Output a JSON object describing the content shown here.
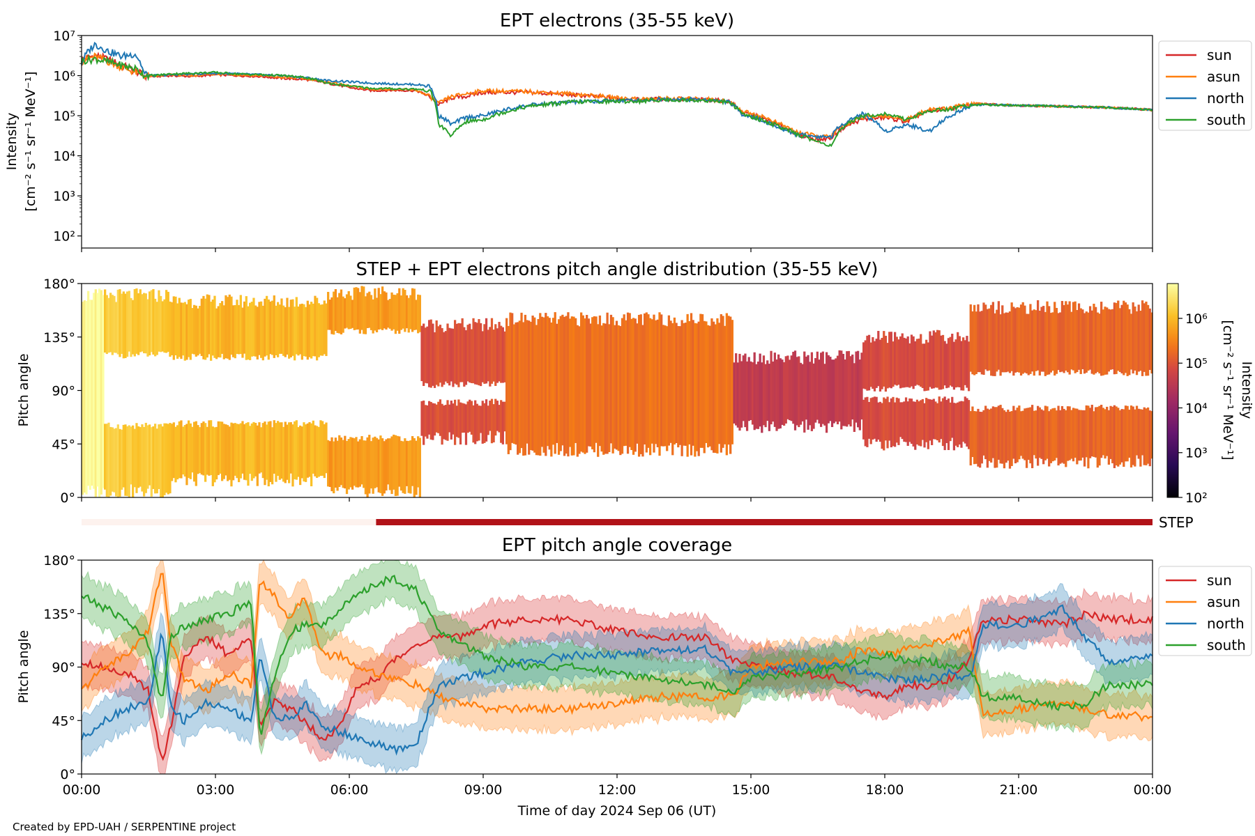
{
  "chart_data": [
    {
      "type": "line",
      "title": "EPT electrons (35-55 keV)",
      "ylabel_lines": [
        "Intensity",
        "[cm⁻² s⁻¹ sr⁻¹ MeV⁻¹]"
      ],
      "yscale": "log",
      "ylim": [
        50,
        10000000
      ],
      "ytick_labels": [
        "10²",
        "10³",
        "10⁴",
        "10⁵",
        "10⁶",
        "10⁷"
      ],
      "ytick_values": [
        100,
        1000,
        10000,
        100000,
        1000000,
        10000000
      ],
      "xlim_hours": [
        0,
        24
      ],
      "legend_position": "outside-right",
      "series": [
        {
          "name": "sun",
          "color": "#d62728",
          "x": [
            0,
            0.3,
            0.6,
            0.9,
            1.2,
            1.4,
            1.6,
            2,
            2.5,
            3,
            3.5,
            4,
            4.5,
            5,
            5.5,
            6,
            6.5,
            7,
            7.5,
            7.8,
            8,
            8.3,
            8.6,
            9,
            10,
            11,
            12,
            12.5,
            13,
            14,
            14.5,
            14.8,
            15.2,
            15.6,
            16,
            16.5,
            16.8,
            17,
            17.5,
            18,
            18.5,
            19,
            19.5,
            20,
            21,
            22,
            23,
            24
          ],
          "y": [
            2500000,
            3200000,
            2500000,
            1800000,
            1300000,
            1000000,
            950000,
            1000000,
            950000,
            1050000,
            1000000,
            950000,
            850000,
            800000,
            650000,
            500000,
            420000,
            430000,
            420000,
            300000,
            180000,
            280000,
            300000,
            380000,
            380000,
            330000,
            270000,
            250000,
            260000,
            250000,
            230000,
            120000,
            90000,
            60000,
            35000,
            25000,
            28000,
            45000,
            80000,
            90000,
            70000,
            130000,
            150000,
            200000,
            180000,
            170000,
            160000,
            140000
          ]
        },
        {
          "name": "asun",
          "color": "#ff7f0e",
          "x": [
            0,
            0.3,
            0.6,
            0.9,
            1.2,
            1.4,
            1.6,
            2,
            2.5,
            3,
            3.5,
            4,
            4.5,
            5,
            5.5,
            6,
            6.5,
            7,
            7.5,
            7.8,
            8,
            8.3,
            8.6,
            9,
            10,
            11,
            12,
            12.5,
            13,
            14,
            14.5,
            14.8,
            15.2,
            15.6,
            16,
            16.5,
            16.8,
            17,
            17.5,
            18,
            18.5,
            19,
            19.5,
            20,
            21,
            22,
            23,
            24
          ],
          "y": [
            2200000,
            3000000,
            2200000,
            1600000,
            1200000,
            1000000,
            950000,
            1050000,
            1000000,
            1100000,
            1050000,
            1000000,
            900000,
            850000,
            700000,
            550000,
            450000,
            460000,
            430000,
            300000,
            200000,
            300000,
            350000,
            420000,
            400000,
            350000,
            280000,
            260000,
            270000,
            260000,
            230000,
            130000,
            100000,
            65000,
            40000,
            30000,
            30000,
            50000,
            90000,
            100000,
            80000,
            140000,
            160000,
            200000,
            180000,
            170000,
            160000,
            140000
          ]
        },
        {
          "name": "north",
          "color": "#1f77b4",
          "x": [
            0,
            0.3,
            0.6,
            0.9,
            1.2,
            1.4,
            1.6,
            2,
            2.5,
            3,
            3.5,
            4,
            4.5,
            5,
            5.5,
            6,
            6.5,
            7,
            7.5,
            7.8,
            8,
            8.3,
            8.6,
            9,
            10,
            11,
            12,
            12.5,
            13,
            14,
            14.5,
            14.8,
            15.2,
            15.6,
            16,
            16.5,
            16.8,
            17,
            17.5,
            18,
            18.5,
            19,
            19.5,
            20,
            21,
            22,
            23,
            24
          ],
          "y": [
            2000000,
            6000000,
            4000000,
            3000000,
            3500000,
            1100000,
            1000000,
            1050000,
            1100000,
            1150000,
            1100000,
            1050000,
            1000000,
            900000,
            750000,
            700000,
            650000,
            620000,
            600000,
            550000,
            100000,
            60000,
            90000,
            100000,
            180000,
            220000,
            240000,
            240000,
            260000,
            250000,
            220000,
            110000,
            80000,
            50000,
            35000,
            30000,
            30000,
            55000,
            110000,
            40000,
            60000,
            40000,
            100000,
            190000,
            180000,
            170000,
            160000,
            140000
          ]
        },
        {
          "name": "south",
          "color": "#2ca02c",
          "x": [
            0,
            0.3,
            0.6,
            0.9,
            1.2,
            1.4,
            1.6,
            2,
            2.5,
            3,
            3.5,
            4,
            4.5,
            5,
            5.5,
            6,
            6.5,
            7,
            7.5,
            7.8,
            8,
            8.3,
            8.6,
            9,
            10,
            11,
            12,
            12.5,
            13,
            14,
            14.5,
            14.8,
            15.2,
            15.6,
            16,
            16.5,
            16.8,
            17,
            17.5,
            18,
            18.5,
            19,
            19.5,
            20,
            21,
            22,
            23,
            24
          ],
          "y": [
            2300000,
            2600000,
            2200000,
            1800000,
            1500000,
            1050000,
            1000000,
            1100000,
            1150000,
            1200000,
            1100000,
            1050000,
            1000000,
            900000,
            650000,
            550000,
            480000,
            470000,
            460000,
            420000,
            60000,
            30000,
            70000,
            80000,
            170000,
            220000,
            230000,
            230000,
            250000,
            240000,
            220000,
            110000,
            80000,
            55000,
            35000,
            22000,
            18000,
            40000,
            100000,
            110000,
            80000,
            130000,
            150000,
            190000,
            180000,
            170000,
            160000,
            140000
          ]
        }
      ]
    },
    {
      "type": "heatmap",
      "title": "STEP + EPT electrons pitch angle distribution (35-55 keV)",
      "ylabel": "Pitch angle",
      "ylim": [
        0,
        180
      ],
      "ytick_labels": [
        "0°",
        "45°",
        "90°",
        "135°",
        "180°"
      ],
      "colorbar": {
        "label_lines": [
          "Intensity",
          "[cm⁻² s⁻¹ sr⁻¹ MeV⁻¹]"
        ],
        "scale": "log",
        "range": [
          100,
          6000000
        ],
        "tick_labels": [
          "10²",
          "10³",
          "10⁴",
          "10⁵",
          "10⁶"
        ],
        "tick_values": [
          100,
          1000,
          10000,
          100000,
          1000000
        ],
        "colormap": "inferno"
      },
      "segments": [
        {
          "x0": 0,
          "x1": 0.5,
          "lo": 5,
          "hi": 170,
          "gap_lo": 0,
          "gap_hi": 0,
          "intensity": 5000000
        },
        {
          "x0": 0.5,
          "x1": 2.0,
          "lo": 5,
          "hi": 170,
          "gap_lo": 60,
          "gap_hi": 120,
          "intensity": 1500000
        },
        {
          "x0": 2.0,
          "x1": 5.5,
          "lo": 15,
          "hi": 165,
          "gap_lo": 62,
          "gap_hi": 118,
          "intensity": 900000
        },
        {
          "x0": 5.5,
          "x1": 7.6,
          "lo": 5,
          "hi": 172,
          "gap_lo": 50,
          "gap_hi": 140,
          "intensity": 500000
        },
        {
          "x0": 7.6,
          "x1": 9.5,
          "lo": 50,
          "hi": 145,
          "gap_lo": 80,
          "gap_hi": 95,
          "intensity": 90000
        },
        {
          "x0": 9.5,
          "x1": 14.6,
          "lo": 40,
          "hi": 150,
          "gap_lo": 0,
          "gap_hi": 0,
          "intensity": 200000
        },
        {
          "x0": 14.6,
          "x1": 17.5,
          "lo": 60,
          "hi": 118,
          "gap_lo": 0,
          "gap_hi": 0,
          "intensity": 40000
        },
        {
          "x0": 17.5,
          "x1": 19.9,
          "lo": 45,
          "hi": 135,
          "gap_lo": 82,
          "gap_hi": 92,
          "intensity": 80000
        },
        {
          "x0": 19.9,
          "x1": 24,
          "lo": 30,
          "hi": 160,
          "gap_lo": 75,
          "gap_hi": 105,
          "intensity": 150000
        }
      ]
    },
    {
      "type": "bar",
      "label": "STEP",
      "segments": [
        {
          "x0": 0,
          "x1": 6.6,
          "color": "#fdf2ee"
        },
        {
          "x0": 6.6,
          "x1": 24,
          "color": "#b11218"
        }
      ]
    },
    {
      "type": "area",
      "title": "EPT pitch angle coverage",
      "ylabel": "Pitch angle",
      "xlabel": "Time of day 2024 Sep 06 (UT)",
      "ylim": [
        0,
        180
      ],
      "ytick_labels": [
        "0°",
        "45°",
        "90°",
        "135°",
        "180°"
      ],
      "xtick_labels": [
        "00:00",
        "03:00",
        "06:00",
        "09:00",
        "12:00",
        "15:00",
        "18:00",
        "21:00",
        "00:00"
      ],
      "xlim_hours": [
        0,
        24
      ],
      "band_halfwidth_deg": 18,
      "legend_position": "outside-right",
      "series": [
        {
          "name": "sun",
          "color": "#d62728",
          "x": [
            0,
            0.5,
            1,
            1.5,
            1.8,
            2,
            2.3,
            2.8,
            3.3,
            3.8,
            4,
            4.3,
            4.7,
            5,
            5.4,
            5.8,
            6.2,
            6.6,
            7,
            7.5,
            8,
            8.5,
            9,
            10,
            11,
            12,
            13,
            14,
            14.6,
            15,
            16,
            17,
            17.5,
            18,
            18.5,
            19,
            19.5,
            19.9,
            20.2,
            21,
            22,
            22.5,
            23,
            24
          ],
          "y": [
            95,
            90,
            85,
            70,
            10,
            40,
            100,
            115,
            100,
            115,
            40,
            60,
            55,
            45,
            30,
            40,
            75,
            80,
            95,
            110,
            115,
            115,
            125,
            130,
            130,
            120,
            115,
            115,
            95,
            92,
            85,
            80,
            70,
            65,
            75,
            75,
            80,
            95,
            130,
            130,
            125,
            135,
            130,
            130
          ]
        },
        {
          "name": "asun",
          "color": "#ff7f0e",
          "x": [
            0,
            0.5,
            1,
            1.5,
            1.8,
            2,
            2.3,
            2.8,
            3.3,
            3.8,
            4,
            4.3,
            4.7,
            5,
            5.4,
            5.8,
            6.2,
            6.6,
            7,
            7.5,
            8,
            8.5,
            9,
            10,
            11,
            12,
            13,
            14,
            14.6,
            15,
            16,
            17,
            17.5,
            18,
            18.5,
            19,
            19.5,
            19.9,
            20.2,
            21,
            22,
            22.5,
            23,
            24
          ],
          "y": [
            70,
            90,
            100,
            120,
            175,
            110,
            80,
            70,
            85,
            75,
            165,
            150,
            130,
            150,
            100,
            100,
            90,
            85,
            80,
            75,
            65,
            60,
            55,
            55,
            55,
            60,
            65,
            65,
            65,
            90,
            95,
            95,
            105,
            100,
            105,
            110,
            115,
            120,
            50,
            55,
            60,
            55,
            50,
            48
          ]
        },
        {
          "name": "north",
          "color": "#1f77b4",
          "x": [
            0,
            0.5,
            1,
            1.5,
            1.8,
            2,
            2.3,
            2.8,
            3.3,
            3.8,
            4,
            4.3,
            4.7,
            5,
            5.4,
            5.8,
            6.2,
            6.6,
            7,
            7.5,
            8,
            8.5,
            9,
            10,
            11,
            12,
            13,
            14,
            14.6,
            15,
            16,
            17,
            17.5,
            18,
            18.5,
            19,
            19.5,
            19.9,
            20.2,
            21,
            22,
            22.5,
            23,
            24
          ],
          "y": [
            30,
            45,
            55,
            60,
            120,
            55,
            45,
            60,
            55,
            45,
            100,
            50,
            45,
            60,
            40,
            35,
            30,
            25,
            20,
            25,
            75,
            80,
            85,
            95,
            100,
            100,
            105,
            105,
            85,
            85,
            90,
            90,
            85,
            80,
            80,
            80,
            85,
            80,
            125,
            125,
            140,
            115,
            95,
            100
          ]
        },
        {
          "name": "south",
          "color": "#2ca02c",
          "x": [
            0,
            0.5,
            1,
            1.5,
            1.8,
            2,
            2.3,
            2.8,
            3.3,
            3.8,
            4,
            4.3,
            4.7,
            5,
            5.4,
            5.8,
            6.2,
            6.6,
            7,
            7.5,
            8,
            8.5,
            9,
            10,
            11,
            12,
            13,
            14,
            14.6,
            15,
            16,
            17,
            17.5,
            18,
            18.5,
            19,
            19.5,
            19.9,
            20.2,
            21,
            22,
            22.5,
            23,
            24
          ],
          "y": [
            150,
            140,
            130,
            110,
            60,
            115,
            125,
            130,
            135,
            145,
            30,
            80,
            120,
            125,
            125,
            140,
            150,
            160,
            165,
            155,
            120,
            110,
            100,
            90,
            90,
            85,
            80,
            75,
            70,
            80,
            85,
            90,
            95,
            100,
            95,
            95,
            90,
            90,
            65,
            65,
            55,
            60,
            75,
            75
          ]
        }
      ]
    }
  ],
  "shared_xaxis": {
    "label": "Time of day 2024 Sep 06 (UT)",
    "tick_labels": [
      "00:00",
      "03:00",
      "06:00",
      "09:00",
      "12:00",
      "15:00",
      "18:00",
      "21:00",
      "00:00"
    ]
  },
  "credit": "Created by EPD-UAH / SERPENTINE project"
}
